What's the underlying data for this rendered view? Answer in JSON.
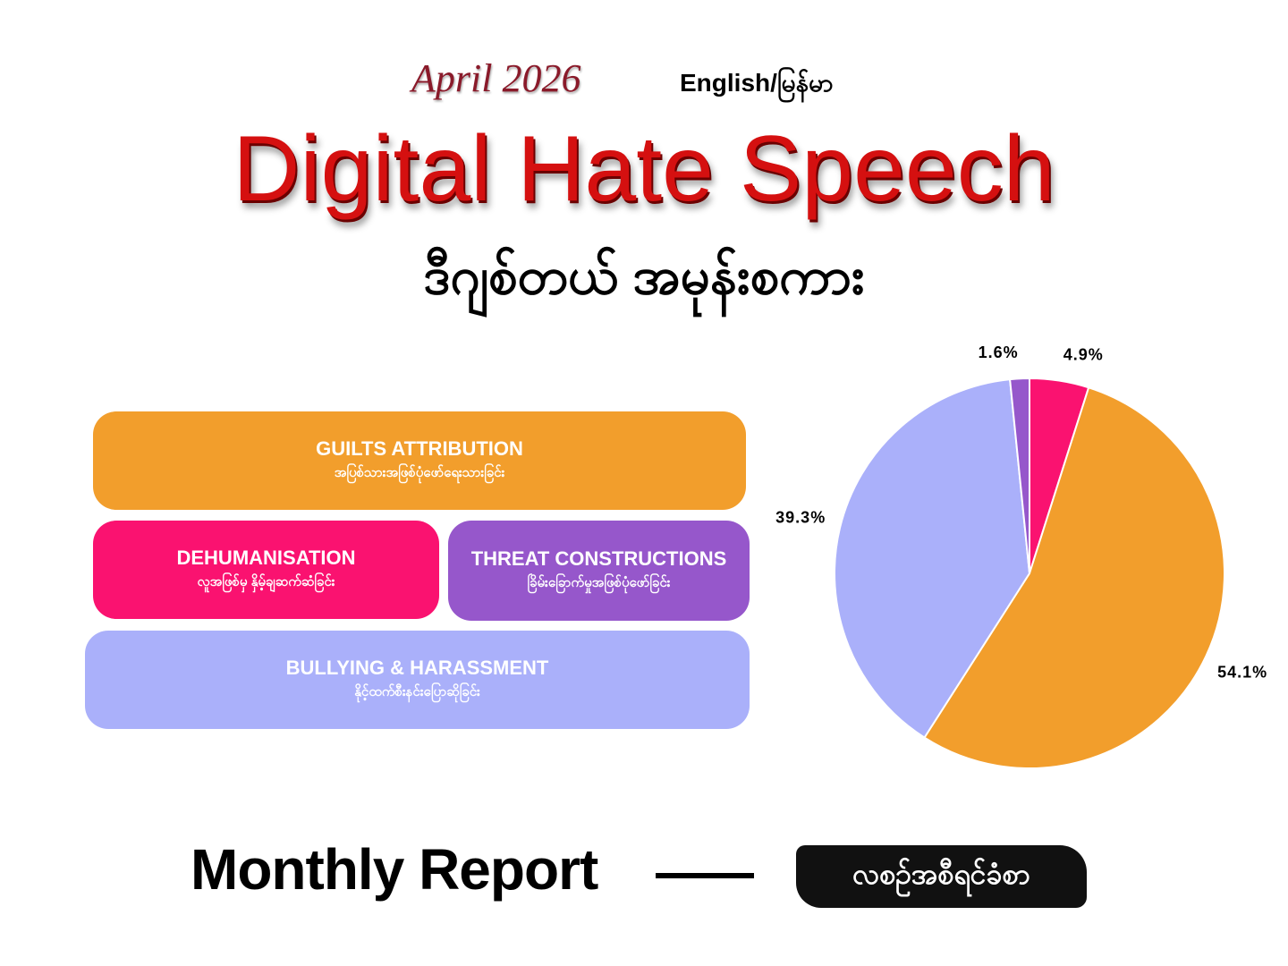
{
  "header": {
    "date": "April 2026",
    "language": "English/မြန်မာ",
    "title": "Digital Hate Speech",
    "title_my": "ဒီဂျစ်တယ် အမုန်းစကား"
  },
  "chart_data": {
    "type": "pie",
    "categories": [
      "DEHUMANISATION",
      "GUILTS ATTRIBUTION",
      "BULLYING & HARASSMENT",
      "THREAT CONSTRUCTIONS"
    ],
    "subtitles": [
      "လူအဖြစ်မှ နှိမ့်ချဆက်ဆံခြင်း",
      "အပြစ်သားအဖြစ်ပုံဖော်ရေးသားခြင်း",
      "နိုင့်ထက်စီးနင်းပြောဆိုခြင်း",
      "ခြိမ်းခြောက်မှုအဖြစ်ပုံဖော်ခြင်း"
    ],
    "values": [
      4.9,
      54.1,
      39.3,
      1.6
    ],
    "value_labels": [
      "4.9%",
      "54.1%",
      "39.3%",
      "1.6%"
    ],
    "colors": [
      "#fa1270",
      "#f29e2c",
      "#aab0fa",
      "#9657cb"
    ]
  },
  "footer": {
    "title": "Monthly Report",
    "title_my": "လစဉ်အစီရင်ခံစာ"
  }
}
